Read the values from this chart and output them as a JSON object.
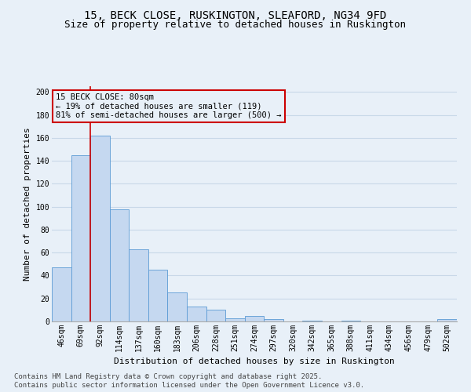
{
  "title_line1": "15, BECK CLOSE, RUSKINGTON, SLEAFORD, NG34 9FD",
  "title_line2": "Size of property relative to detached houses in Ruskington",
  "xlabel": "Distribution of detached houses by size in Ruskington",
  "ylabel": "Number of detached properties",
  "categories": [
    "46sqm",
    "69sqm",
    "92sqm",
    "114sqm",
    "137sqm",
    "160sqm",
    "183sqm",
    "206sqm",
    "228sqm",
    "251sqm",
    "274sqm",
    "297sqm",
    "320sqm",
    "342sqm",
    "365sqm",
    "388sqm",
    "411sqm",
    "434sqm",
    "456sqm",
    "479sqm",
    "502sqm"
  ],
  "values": [
    47,
    145,
    162,
    98,
    63,
    45,
    25,
    13,
    10,
    3,
    5,
    2,
    0,
    1,
    0,
    1,
    0,
    0,
    0,
    0,
    2
  ],
  "bar_color": "#c5d8f0",
  "bar_edge_color": "#5b9bd5",
  "bg_color": "#e8f0f8",
  "grid_color": "#c8d8e8",
  "annotation_box_text": "15 BECK CLOSE: 80sqm\n← 19% of detached houses are smaller (119)\n81% of semi-detached houses are larger (500) →",
  "vline_color": "#cc0000",
  "vline_pos": 1.5,
  "ylim": [
    0,
    205
  ],
  "yticks": [
    0,
    20,
    40,
    60,
    80,
    100,
    120,
    140,
    160,
    180,
    200
  ],
  "footnote1": "Contains HM Land Registry data © Crown copyright and database right 2025.",
  "footnote2": "Contains public sector information licensed under the Open Government Licence v3.0.",
  "title_fontsize": 10,
  "subtitle_fontsize": 9,
  "axis_label_fontsize": 8,
  "tick_fontsize": 7,
  "annotation_fontsize": 7.5,
  "footnote_fontsize": 6.5
}
